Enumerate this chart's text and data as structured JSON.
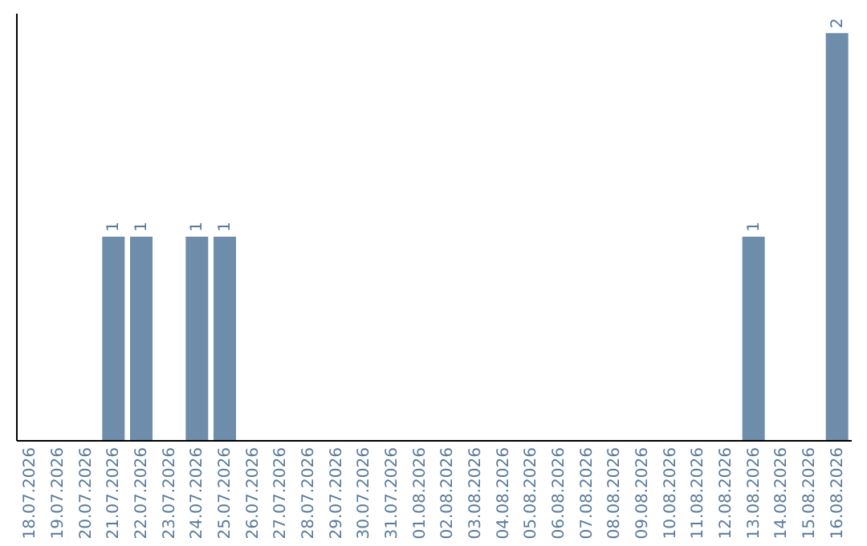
{
  "chart_data": {
    "type": "bar",
    "categories": [
      "18.07.2026",
      "19.07.2026",
      "20.07.2026",
      "21.07.2026",
      "22.07.2026",
      "23.07.2026",
      "24.07.2026",
      "25.07.2026",
      "26.07.2026",
      "27.07.2026",
      "28.07.2026",
      "29.07.2026",
      "30.07.2026",
      "31.07.2026",
      "01.08.2026",
      "02.08.2026",
      "03.08.2026",
      "04.08.2026",
      "05.08.2026",
      "06.08.2026",
      "07.08.2026",
      "08.08.2026",
      "09.08.2026",
      "10.08.2026",
      "11.08.2026",
      "12.08.2026",
      "13.08.2026",
      "14.08.2026",
      "15.08.2026",
      "16.08.2026"
    ],
    "values": [
      0,
      0,
      0,
      1,
      1,
      0,
      1,
      1,
      0,
      0,
      0,
      0,
      0,
      0,
      0,
      0,
      0,
      0,
      0,
      0,
      0,
      0,
      0,
      0,
      0,
      0,
      1,
      0,
      0,
      2
    ],
    "value_labels": [
      null,
      null,
      null,
      "1",
      "1",
      null,
      "1",
      "1",
      null,
      null,
      null,
      null,
      null,
      null,
      null,
      null,
      null,
      null,
      null,
      null,
      null,
      null,
      null,
      null,
      null,
      null,
      "1",
      null,
      null,
      "2"
    ],
    "color": "#6d8dab",
    "grid": false,
    "tick_labels": "x"
  }
}
